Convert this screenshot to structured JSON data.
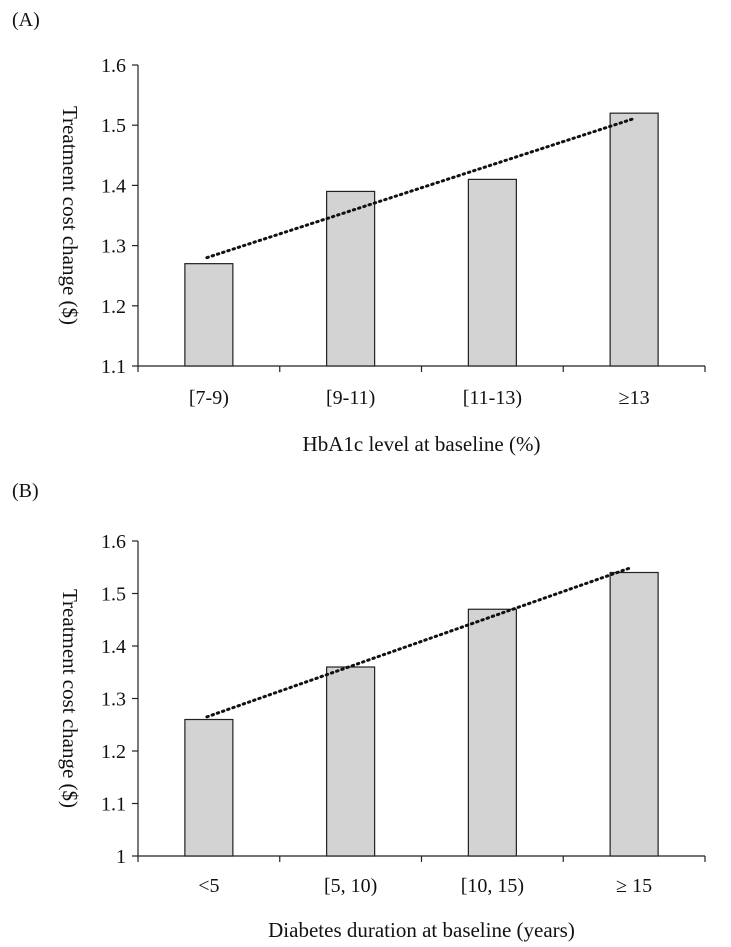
{
  "chart_data": [
    {
      "panel_label": "(A)",
      "type": "bar",
      "categories": [
        "[7-9)",
        "[9-11)",
        "[11-13)",
        "≥13"
      ],
      "values": [
        1.27,
        1.39,
        1.41,
        1.52
      ],
      "ylabel": "Treatment cost change ($)",
      "xlabel": "HbA1c level at baseline (%)",
      "ylim": [
        1.1,
        1.6
      ],
      "yticks": [
        "1.1",
        "1.2",
        "1.3",
        "1.4",
        "1.5",
        "1.6"
      ],
      "trendline": {
        "style": "dotted",
        "start": 1.28,
        "end": 1.51
      },
      "grid": false,
      "bar_color": "#d3d3d3",
      "bar_edge_color": "#222222"
    },
    {
      "panel_label": "(B)",
      "type": "bar",
      "categories": [
        "<5",
        "[5, 10)",
        "[10, 15)",
        "≥ 15"
      ],
      "values": [
        1.26,
        1.36,
        1.47,
        1.54
      ],
      "ylabel": "Treatment cost change ($)",
      "xlabel": "Diabetes duration at baseline (years)",
      "ylim": [
        1.0,
        1.6
      ],
      "yticks": [
        "1",
        "1.1",
        "1.2",
        "1.3",
        "1.4",
        "1.5",
        "1.6"
      ],
      "trendline": {
        "style": "dotted",
        "start": 1.265,
        "end": 1.55
      },
      "grid": false,
      "bar_color": "#d3d3d3",
      "bar_edge_color": "#222222"
    }
  ]
}
